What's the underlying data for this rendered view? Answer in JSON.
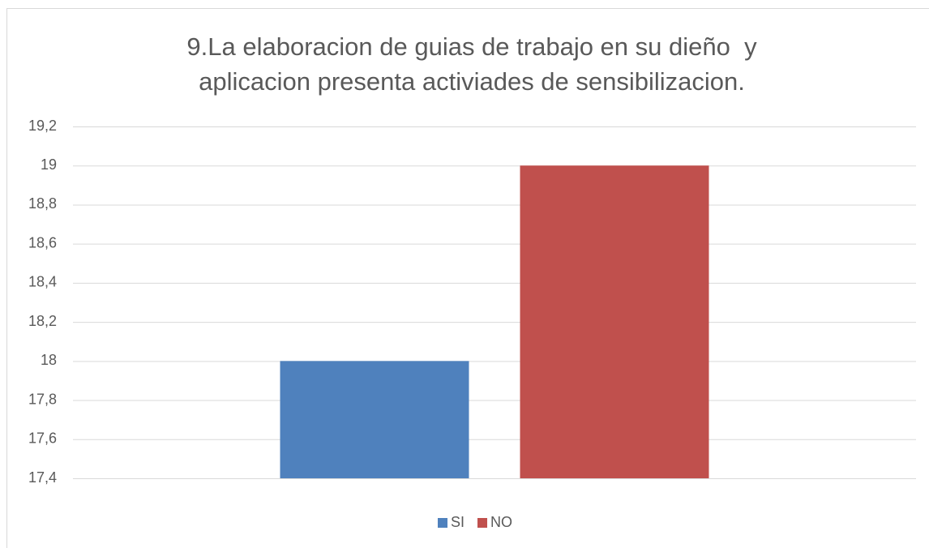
{
  "chart_data": {
    "type": "bar",
    "title": [
      "9.La elaboracion de guias de trabajo en su dieño  y",
      "aplicacion presenta activiades de sensibilizacion."
    ],
    "categories": [
      null
    ],
    "series": [
      {
        "name": "SI",
        "color": "#4f81bd",
        "values": [
          18
        ]
      },
      {
        "name": "NO",
        "color": "#c0504d",
        "values": [
          19
        ]
      }
    ],
    "ylim": [
      17.4,
      19.2
    ],
    "yticks": [
      {
        "value": 17.4,
        "label": "17,4"
      },
      {
        "value": 17.6,
        "label": "17,6"
      },
      {
        "value": 17.8,
        "label": "17,8"
      },
      18,
      {
        "value": 18.2,
        "label": "18,2"
      },
      {
        "value": 18.4,
        "label": "18,4"
      },
      {
        "value": 18.6,
        "label": "18,6"
      },
      {
        "value": 18.8,
        "label": "18,8"
      },
      19,
      {
        "value": 19.2,
        "label": "19,2"
      }
    ],
    "grid": true,
    "legend": "bottom"
  }
}
